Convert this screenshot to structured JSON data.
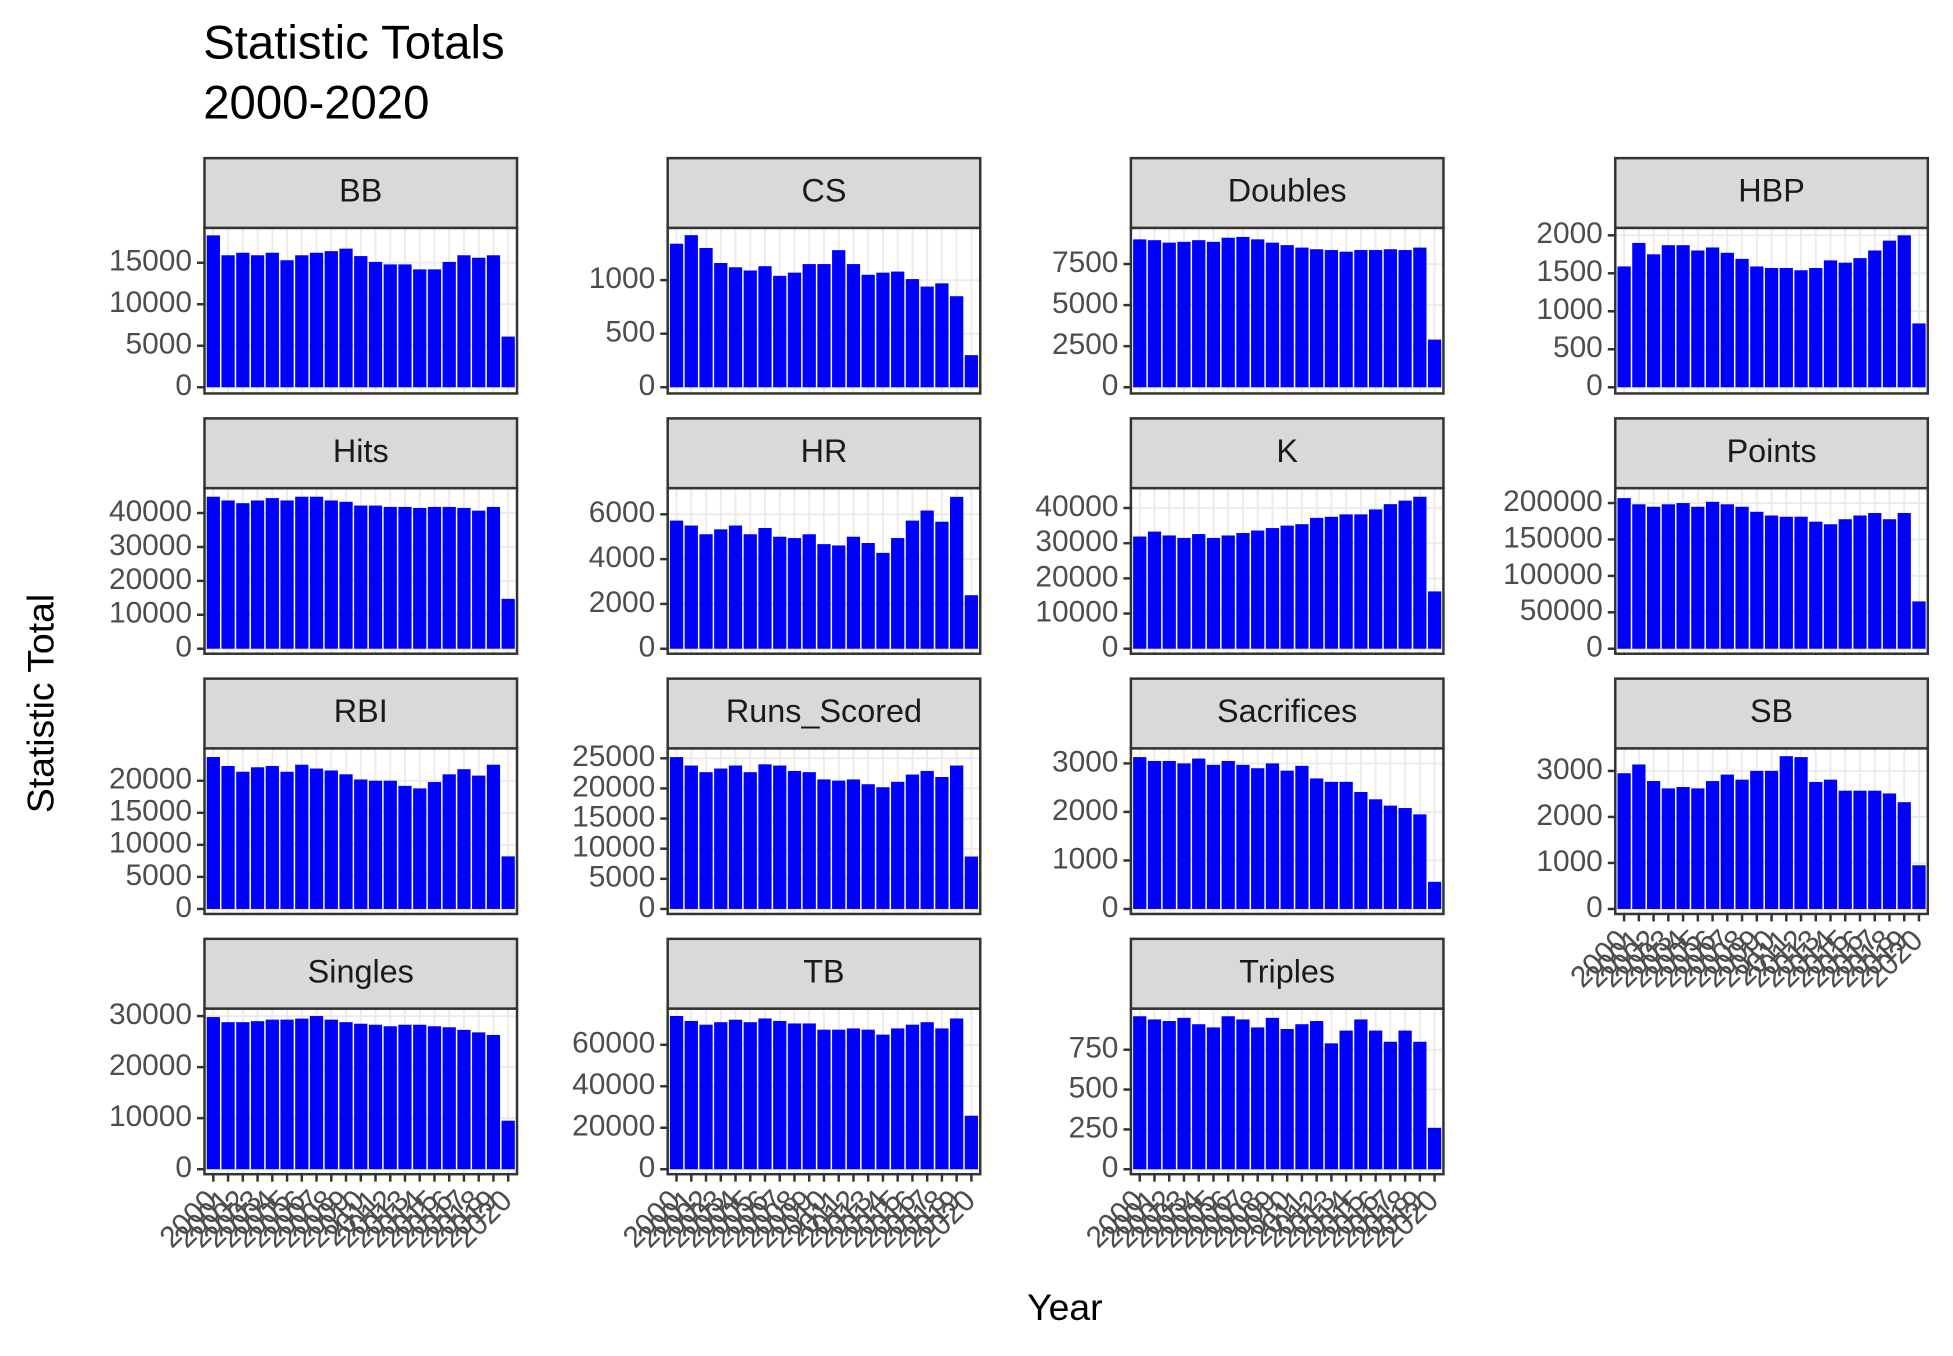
{
  "chart_data": {
    "type": "bar",
    "title": "Statistic Totals",
    "subtitle": "2000-2020",
    "x_label": "Year",
    "y_label": "Statistic Total",
    "color": "#0000ff",
    "grid": true,
    "categories": [
      "2000",
      "2001",
      "2002",
      "2003",
      "2004",
      "2005",
      "2006",
      "2007",
      "2008",
      "2009",
      "2010",
      "2011",
      "2012",
      "2013",
      "2014",
      "2015",
      "2016",
      "2017",
      "2018",
      "2019",
      "2020"
    ],
    "panels": [
      {
        "name": "BB",
        "ylim": [
          -750,
          19200
        ],
        "yticks": [
          0,
          5000,
          10000,
          15000
        ],
        "values": [
          18300,
          15900,
          16200,
          15900,
          16200,
          15300,
          15900,
          16200,
          16400,
          16700,
          15800,
          15100,
          14800,
          14800,
          14200,
          14200,
          15100,
          15900,
          15600,
          15900,
          6100
        ]
      },
      {
        "name": "CS",
        "ylim": [
          -58,
          1488
        ],
        "yticks": [
          0,
          500,
          1000
        ],
        "values": [
          1340,
          1420,
          1300,
          1160,
          1120,
          1090,
          1130,
          1040,
          1070,
          1150,
          1150,
          1280,
          1150,
          1050,
          1070,
          1080,
          1010,
          940,
          970,
          850,
          300
        ]
      },
      {
        "name": "Doubles",
        "ylim": [
          -379,
          9700
        ],
        "yticks": [
          0,
          2500,
          5000,
          7500
        ],
        "values": [
          9000,
          8950,
          8800,
          8850,
          8950,
          8850,
          9100,
          9150,
          9000,
          8800,
          8650,
          8500,
          8400,
          8350,
          8250,
          8350,
          8350,
          8400,
          8350,
          8500,
          2900
        ]
      },
      {
        "name": "HBP",
        "ylim": [
          -82,
          2098
        ],
        "yticks": [
          0,
          500,
          1000,
          1500,
          2000
        ],
        "values": [
          1590,
          1900,
          1750,
          1870,
          1870,
          1800,
          1840,
          1770,
          1690,
          1590,
          1570,
          1570,
          1540,
          1570,
          1670,
          1640,
          1700,
          1800,
          1930,
          2000,
          840
        ]
      },
      {
        "name": "Hits",
        "ylim": [
          -1470,
          47340
        ],
        "yticks": [
          0,
          10000,
          20000,
          30000,
          40000
        ],
        "values": [
          44800,
          43700,
          42900,
          43700,
          44400,
          43700,
          44800,
          44800,
          43700,
          43300,
          42200,
          42200,
          41800,
          41800,
          41500,
          41800,
          41800,
          41500,
          40700,
          41800,
          14700
        ]
      },
      {
        "name": "HR",
        "ylim": [
          -222,
          7170
        ],
        "yticks": [
          0,
          2000,
          4000,
          6000
        ],
        "values": [
          5720,
          5500,
          5110,
          5330,
          5500,
          5110,
          5390,
          5000,
          4940,
          5110,
          4670,
          4610,
          5000,
          4720,
          4280,
          4940,
          5720,
          6170,
          5670,
          6780,
          2390
        ]
      },
      {
        "name": "K",
        "ylim": [
          -1420,
          45660
        ],
        "yticks": [
          0,
          10000,
          20000,
          30000,
          40000
        ],
        "values": [
          31900,
          33300,
          32200,
          31500,
          32600,
          31500,
          32200,
          32900,
          33600,
          34300,
          35000,
          35400,
          37200,
          37500,
          38200,
          38200,
          39600,
          41100,
          42100,
          43200,
          16300
        ]
      },
      {
        "name": "Points",
        "ylim": [
          -6840,
          220500
        ],
        "yticks": [
          0,
          50000,
          100000,
          150000,
          200000
        ],
        "values": [
          206800,
          198300,
          194900,
          198300,
          200000,
          194900,
          201700,
          198300,
          194900,
          188000,
          182900,
          181200,
          181200,
          174400,
          170900,
          177800,
          182900,
          186300,
          177800,
          186300,
          65000
        ]
      },
      {
        "name": "RBI",
        "ylim": [
          -780,
          25050
        ],
        "yticks": [
          0,
          5000,
          10000,
          15000,
          20000
        ],
        "values": [
          23700,
          22300,
          21400,
          22100,
          22300,
          21400,
          22500,
          21900,
          21600,
          21000,
          20200,
          20000,
          20000,
          19200,
          18800,
          19800,
          21000,
          21800,
          20800,
          22500,
          8200
        ]
      },
      {
        "name": "Runs_Scored",
        "ylim": [
          -830,
          26650
        ],
        "yticks": [
          0,
          5000,
          10000,
          15000,
          20000,
          25000
        ],
        "values": [
          25200,
          23800,
          22700,
          23300,
          23800,
          22700,
          24000,
          23800,
          22900,
          22700,
          21500,
          21300,
          21500,
          20700,
          20200,
          21100,
          22300,
          22900,
          21900,
          23800,
          8700
        ]
      },
      {
        "name": "Sacrifices",
        "ylim": [
          -103,
          3310
        ],
        "yticks": [
          0,
          1000,
          2000,
          3000
        ],
        "values": [
          3130,
          3050,
          3050,
          3000,
          3100,
          2970,
          3050,
          2970,
          2900,
          3000,
          2850,
          2950,
          2690,
          2620,
          2620,
          2410,
          2260,
          2130,
          2080,
          1950,
          560
        ]
      },
      {
        "name": "SB",
        "ylim": [
          -108,
          3490
        ],
        "yticks": [
          0,
          1000,
          2000,
          3000
        ],
        "values": [
          2950,
          3140,
          2780,
          2620,
          2650,
          2620,
          2780,
          2920,
          2810,
          3000,
          3000,
          3320,
          3300,
          2760,
          2810,
          2570,
          2570,
          2570,
          2510,
          2320,
          950
        ]
      },
      {
        "name": "Singles",
        "ylim": [
          -980,
          31460
        ],
        "yticks": [
          0,
          10000,
          20000,
          30000
        ],
        "values": [
          29800,
          28800,
          28800,
          29000,
          29300,
          29300,
          29500,
          30000,
          29300,
          28800,
          28500,
          28300,
          28000,
          28300,
          28300,
          28000,
          27800,
          27300,
          26800,
          26300,
          9500
        ]
      },
      {
        "name": "TB",
        "ylim": [
          -2400,
          77460
        ],
        "yticks": [
          0,
          20000,
          40000,
          60000
        ],
        "values": [
          73900,
          71500,
          69700,
          70900,
          72100,
          70900,
          72700,
          71500,
          70300,
          70300,
          67300,
          67300,
          67900,
          67300,
          64900,
          67900,
          69700,
          70900,
          67900,
          72700,
          25800
        ]
      },
      {
        "name": "Triples",
        "ylim": [
          -31,
          1008
        ],
        "yticks": [
          0,
          250,
          500,
          750
        ],
        "values": [
          960,
          940,
          930,
          950,
          910,
          890,
          960,
          940,
          890,
          950,
          880,
          910,
          930,
          790,
          870,
          940,
          870,
          800,
          870,
          800,
          260
        ]
      }
    ]
  }
}
